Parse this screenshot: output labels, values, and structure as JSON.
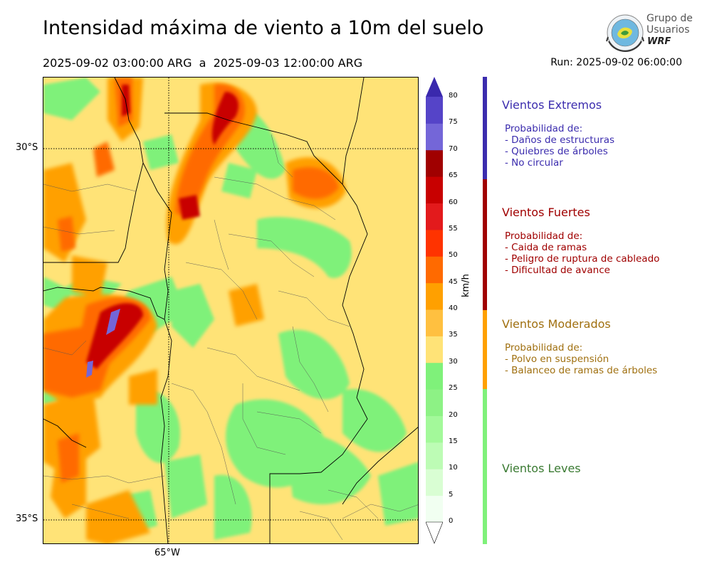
{
  "header": {
    "title": "Intensidad máxima de viento a 10m del suelo",
    "period": "2025-09-02 03:00:00 ARG  a  2025-09-03 12:00:00 ARG",
    "run": "Run: 2025-09-02 06:00:00"
  },
  "logo": {
    "line1": "Grupo de",
    "line2": "Usuarios",
    "line3": "WRF"
  },
  "map": {
    "lat_labels": [
      "30°S",
      "35°S"
    ],
    "lon_labels": [
      "65°W"
    ]
  },
  "colorbar": {
    "unit": "km/h",
    "ticks": [
      "0",
      "5",
      "10",
      "15",
      "20",
      "25",
      "30",
      "35",
      "40",
      "45",
      "50",
      "55",
      "60",
      "65",
      "70",
      "75",
      "80"
    ],
    "colors": [
      "#f1fff1",
      "#d9fed3",
      "#bdfcb5",
      "#a3f99a",
      "#8df285",
      "#7ff17a",
      "#ffe377",
      "#ffc040",
      "#ffa000",
      "#ff6a00",
      "#ff3300",
      "#e31a1c",
      "#c80000",
      "#a00000",
      "#7466d8",
      "#5544c8",
      "#3e2ab8"
    ],
    "extend_color": "#3a29ad",
    "extend_low_color": "#ffffff"
  },
  "categories": [
    {
      "name": "Vientos Extremos",
      "color": "#3b2cae",
      "lines": [
        "Probabilidad de:",
        "- Daños de estructuras",
        "- Quiebres de árboles",
        "- No circular"
      ]
    },
    {
      "name": "Vientos Fuertes",
      "color": "#a00000",
      "lines": [
        "Probabilidad de:",
        "- Caida de ramas",
        "- Peligro de ruptura de cableado",
        "- Dificultad de avance"
      ]
    },
    {
      "name": "Vientos Moderados",
      "color": "#a07010",
      "lines": [
        "Probabilidad de:",
        "- Polvo en suspensión",
        "- Balanceo de ramas de árboles"
      ]
    },
    {
      "name": "Vientos Leves",
      "color": "#3a7a32",
      "lines": []
    }
  ],
  "category_bar_colors": [
    "#3b2cae",
    "#a00000",
    "#ffa000",
    "#7ff17a"
  ]
}
